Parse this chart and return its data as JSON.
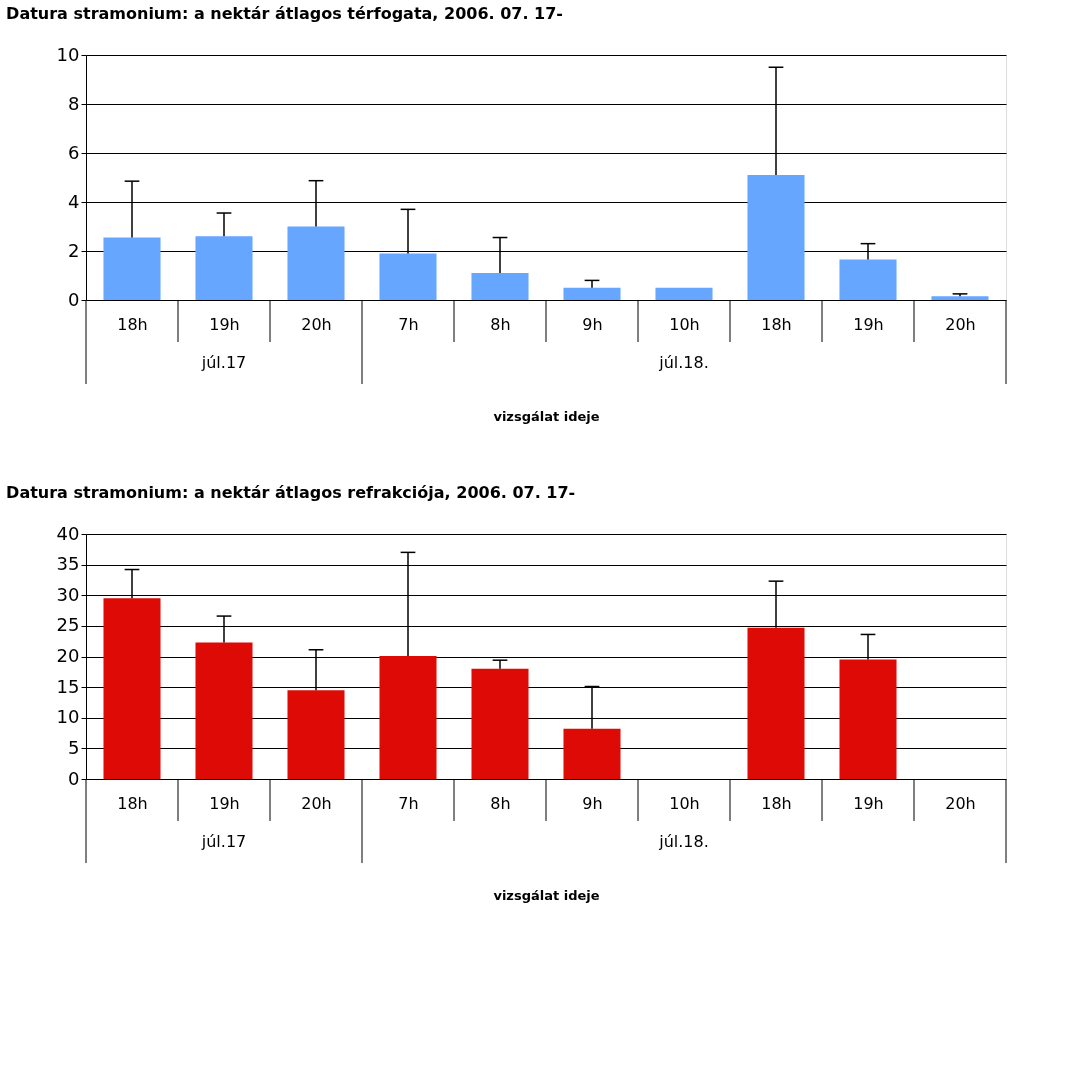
{
  "chart_data": [
    {
      "type": "bar",
      "title": "Datura stramonium: a nektár átlagos térfogata, 2006. 07. 17-",
      "xlabel": "vizsgálat ideje",
      "categories": [
        "18h",
        "19h",
        "20h",
        "7h",
        "8h",
        "9h",
        "10h",
        "18h",
        "19h",
        "20h"
      ],
      "series": [
        {
          "color": "#66a6ff",
          "values": [
            2.55,
            2.6,
            3.0,
            1.9,
            1.1,
            0.5,
            0.5,
            5.1,
            1.65,
            0.15
          ],
          "errors": [
            [
              2.55,
              4.85
            ],
            [
              2.6,
              3.55
            ],
            [
              3.0,
              4.87
            ],
            [
              1.9,
              3.7
            ],
            [
              1.1,
              2.55
            ],
            [
              0.5,
              0.8
            ],
            null,
            [
              5.1,
              9.5
            ],
            [
              1.65,
              2.3
            ],
            [
              0.15,
              0.25
            ]
          ]
        }
      ],
      "annotations": [
        "júl.17",
        "júl.18."
      ],
      "ylim": [
        0,
        10
      ],
      "yticks": [
        0,
        2,
        4,
        6,
        8,
        10
      ],
      "grid": "y"
    },
    {
      "type": "bar",
      "title": "Datura stramonium: a nektár átlagos refrakciója, 2006. 07. 17-",
      "xlabel": "vizsgálat ideje",
      "categories": [
        "18h",
        "19h",
        "20h",
        "7h",
        "8h",
        "9h",
        "10h",
        "18h",
        "19h",
        "20h"
      ],
      "series": [
        {
          "color": "#dd0a05",
          "values": [
            29.5,
            22.3,
            14.5,
            20.1,
            18.0,
            8.2,
            null,
            24.7,
            19.5,
            null
          ],
          "errors": [
            [
              29.5,
              34.2
            ],
            [
              22.3,
              26.6
            ],
            [
              14.5,
              21.1
            ],
            [
              20.1,
              37.0
            ],
            [
              18.0,
              19.4
            ],
            [
              8.2,
              15.1
            ],
            null,
            [
              24.7,
              32.3
            ],
            [
              19.5,
              23.6
            ],
            null
          ]
        }
      ],
      "annotations": [
        "júl.17",
        "júl.18."
      ],
      "ylim": [
        0,
        40
      ],
      "yticks": [
        0,
        5,
        10,
        15,
        20,
        25,
        30,
        35,
        40
      ],
      "grid": "y"
    }
  ]
}
